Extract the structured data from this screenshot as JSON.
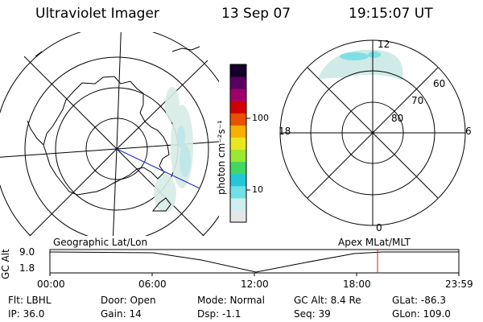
{
  "header": {
    "title": "Ultraviolet Imager",
    "date": "13 Sep 07",
    "time": "19:15:07 UT"
  },
  "colorbar": {
    "unit_label": "photon cm⁻²s⁻¹",
    "tick_labels": [
      "100",
      "10"
    ],
    "colors": [
      "#e6e6e6",
      "#cdeef0",
      "#6ee0e6",
      "#22c8d8",
      "#40d860",
      "#9ae830",
      "#e8e820",
      "#f8b000",
      "#e85000",
      "#d00000",
      "#a0006a",
      "#5a0060",
      "#14002a"
    ]
  },
  "left_map": {
    "panel_label": "Geographic Lat/Lon"
  },
  "right_map": {
    "panel_label": "Apex MLat/MLT",
    "lat_labels": [
      "80",
      "70",
      "60"
    ],
    "mlt_labels": [
      "12",
      "18",
      "6",
      "0"
    ]
  },
  "altitude_plot": {
    "axis_label": "GC Alt",
    "y_ticks": [
      "9.0",
      "1.8"
    ],
    "x_ticks": [
      "00:00",
      "06:00",
      "12:00",
      "18:00",
      "23:59"
    ],
    "current_time_fraction": 0.8
  },
  "status": {
    "filter": "Flt: LBHL",
    "ip": "IP: 36.0",
    "door": "Door: Open",
    "gain": "Gain: 14",
    "mode": "Mode: Normal",
    "dsp": "Dsp:    -1.1",
    "gc_alt": "GC Alt: 8.4 Re",
    "seq": "Seq: 39",
    "glat": "GLat: -86.3",
    "glon": "GLon: 109.0"
  }
}
